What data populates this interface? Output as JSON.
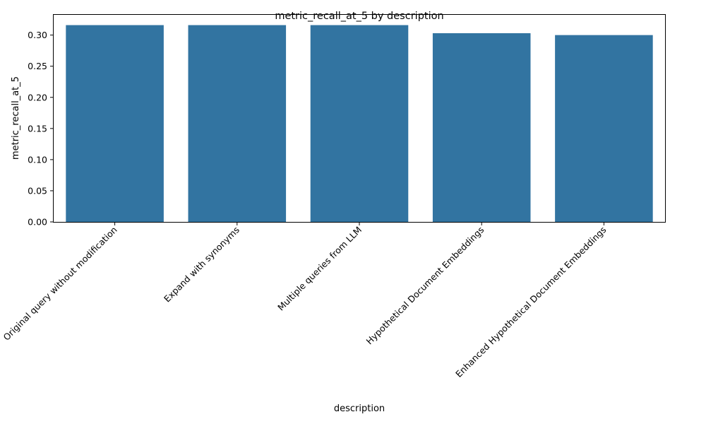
{
  "chart_data": {
    "type": "bar",
    "title": "metric_recall_at_5 by description",
    "xlabel": "description",
    "ylabel": "metric_recall_at_5",
    "categories": [
      "Original query without modification",
      "Expand with synonyms",
      "Multiple queries from LLM",
      "Hypothetical Document Embeddings",
      "Enhanced Hypothetical Document Embeddings"
    ],
    "values": [
      0.316,
      0.316,
      0.316,
      0.303,
      0.3
    ],
    "ylim": [
      0,
      0.3325
    ],
    "yticks": [
      0.0,
      0.05,
      0.1,
      0.15,
      0.2,
      0.25,
      0.3
    ],
    "ytick_labels": [
      "0.00",
      "0.05",
      "0.10",
      "0.15",
      "0.20",
      "0.25",
      "0.30"
    ],
    "bar_color": "#3274a1",
    "grid": false,
    "legend": "none"
  }
}
